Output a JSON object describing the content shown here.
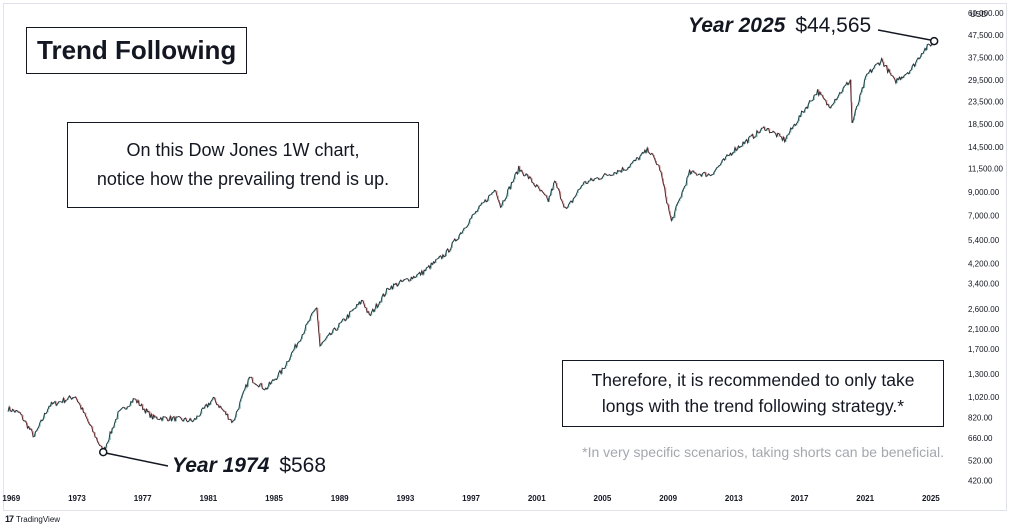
{
  "title": "Trend Following",
  "note": {
    "line1": "On this Dow Jones 1W chart,",
    "line2": "notice how the prevailing trend is up."
  },
  "recommendation": {
    "line1": "Therefore, it is recommended to only take",
    "line2": "longs with the trend following strategy.*"
  },
  "footnote": "*In very specific scenarios, taking shorts can be beneficial.",
  "annotations": {
    "end": {
      "year": "Year 2025",
      "price": "$44,565"
    },
    "start": {
      "year": "Year 1974",
      "price": "$568"
    }
  },
  "brand": {
    "name": "TradingView",
    "icon": "tradingview-logo"
  },
  "colors": {
    "up": "#26a69a",
    "down": "#ef5350",
    "line": "#131722",
    "axis_text": "#131722",
    "footnote": "#a4a7ae"
  },
  "chart_data": {
    "type": "line",
    "title": "Dow Jones 1W",
    "currency": "USD",
    "y_scale": "log",
    "ylim": [
      380,
      62000
    ],
    "y_ticks": [
      {
        "value": 60000,
        "label": "60,000.00"
      },
      {
        "value": 47500,
        "label": "47,500.00"
      },
      {
        "value": 37500,
        "label": "37,500.00"
      },
      {
        "value": 29500,
        "label": "29,500.00"
      },
      {
        "value": 23500,
        "label": "23,500.00"
      },
      {
        "value": 18500,
        "label": "18,500.00"
      },
      {
        "value": 14500,
        "label": "14,500.00"
      },
      {
        "value": 11500,
        "label": "11,500.00"
      },
      {
        "value": 9000,
        "label": "9,000.00"
      },
      {
        "value": 7000,
        "label": "7,000.00"
      },
      {
        "value": 5400,
        "label": "5,400.00"
      },
      {
        "value": 4200,
        "label": "4,200.00"
      },
      {
        "value": 3400,
        "label": "3,400.00"
      },
      {
        "value": 2600,
        "label": "2,600.00"
      },
      {
        "value": 2100,
        "label": "2,100.00"
      },
      {
        "value": 1700,
        "label": "1,700.00"
      },
      {
        "value": 1300,
        "label": "1,300.00"
      },
      {
        "value": 1020,
        "label": "1,020.00"
      },
      {
        "value": 820,
        "label": "820.00"
      },
      {
        "value": 660,
        "label": "660.00"
      },
      {
        "value": 520,
        "label": "520.00"
      },
      {
        "value": 420,
        "label": "420.00"
      }
    ],
    "xlim": [
      1968.8,
      2025.8
    ],
    "x_ticks": [
      1969,
      1973,
      1977,
      1981,
      1985,
      1989,
      1993,
      1997,
      2001,
      2005,
      2009,
      2013,
      2017,
      2021,
      2025
    ],
    "points": [
      [
        1968.8,
        900
      ],
      [
        1969.5,
        860
      ],
      [
        1970.4,
        670
      ],
      [
        1971.3,
        930
      ],
      [
        1972.9,
        1030
      ],
      [
        1974.6,
        568
      ],
      [
        1975.5,
        850
      ],
      [
        1976.5,
        1000
      ],
      [
        1977.6,
        820
      ],
      [
        1978.9,
        810
      ],
      [
        1980.1,
        790
      ],
      [
        1981.3,
        1000
      ],
      [
        1982.5,
        780
      ],
      [
        1983.5,
        1250
      ],
      [
        1984.5,
        1110
      ],
      [
        1985.5,
        1350
      ],
      [
        1986.5,
        1850
      ],
      [
        1987.6,
        2650
      ],
      [
        1987.8,
        1750
      ],
      [
        1988.9,
        2150
      ],
      [
        1990.4,
        2850
      ],
      [
        1990.8,
        2400
      ],
      [
        1992.0,
        3250
      ],
      [
        1994.0,
        3800
      ],
      [
        1995.5,
        4700
      ],
      [
        1997.0,
        6800
      ],
      [
        1998.5,
        9300
      ],
      [
        1998.8,
        7700
      ],
      [
        1999.9,
        11500
      ],
      [
        2000.5,
        10500
      ],
      [
        2001.7,
        8200
      ],
      [
        2002.1,
        10000
      ],
      [
        2002.8,
        7400
      ],
      [
        2003.8,
        9800
      ],
      [
        2005.0,
        10600
      ],
      [
        2006.5,
        11600
      ],
      [
        2007.8,
        14100
      ],
      [
        2008.5,
        11500
      ],
      [
        2009.2,
        6550
      ],
      [
        2010.3,
        11000
      ],
      [
        2011.6,
        10800
      ],
      [
        2013.0,
        14000
      ],
      [
        2014.9,
        17800
      ],
      [
        2016.1,
        15600
      ],
      [
        2017.2,
        21000
      ],
      [
        2018.1,
        26200
      ],
      [
        2018.8,
        22200
      ],
      [
        2020.1,
        29500
      ],
      [
        2020.2,
        18600
      ],
      [
        2021.1,
        31000
      ],
      [
        2022.0,
        36500
      ],
      [
        2022.8,
        29000
      ],
      [
        2023.8,
        33000
      ],
      [
        2024.5,
        40000
      ],
      [
        2025.2,
        44565
      ]
    ]
  }
}
